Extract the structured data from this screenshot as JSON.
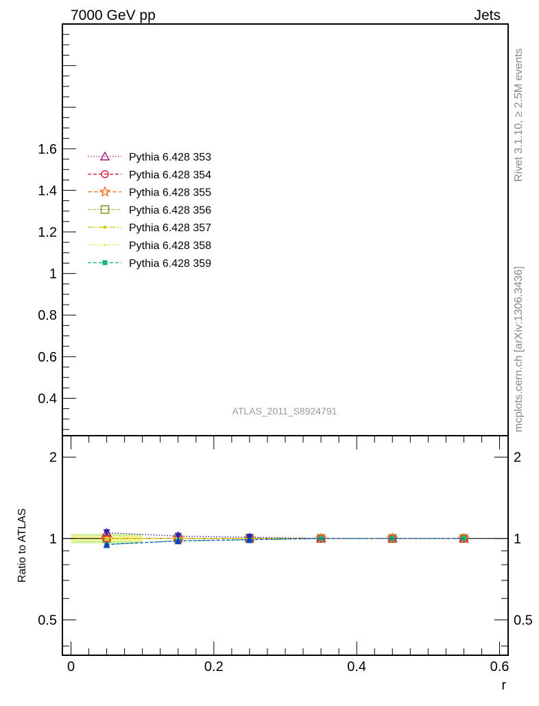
{
  "header": {
    "left": "7000 GeV pp",
    "right": "Jets"
  },
  "side_texts": {
    "top": "Rivet 3.1.10, ≥ 2.5M events",
    "bottom": "mcplots.cern.ch [arXiv:1306.3436]"
  },
  "watermark": "ATLAS_2011_S8924791",
  "colors": {
    "s353": "#b0107a",
    "s354": "#e0102a",
    "s355": "#f07020",
    "s356": "#7a8a10",
    "s357": "#d8c800",
    "s358": "#c8e820",
    "s359": "#10b878",
    "band_inner": "#f7f796",
    "band_outer": "#d0f0a0",
    "blue_up": "#3020b0",
    "blue_down": "#1040c0"
  },
  "chart_data": {
    "type": "line",
    "title": "",
    "xlabel": "r",
    "ylabel_ratio": "Ratio to ATLAS",
    "xlim": [
      -0.012,
      0.612
    ],
    "main_ylim": [
      0.22,
      2.2
    ],
    "ratio_ylim": [
      0.37,
      2.4
    ],
    "x_ticks": [
      "0",
      "0.2",
      "0.4",
      "0.6"
    ],
    "main_y_ticks": [
      "0.4",
      "0.6",
      "0.8",
      "1",
      "1.2",
      "1.4",
      "1.6"
    ],
    "ratio_y_ticks": [
      "0.5",
      "1",
      "2"
    ],
    "x": [
      0.05,
      0.15,
      0.25,
      0.35,
      0.45,
      0.55
    ],
    "ratio_band_inner": 0.02,
    "ratio_band_outer": 0.04,
    "series": [
      {
        "name": "Pythia 6.428 353",
        "key": "s353",
        "marker": "triangle-open",
        "dash": "1.5,2.5",
        "ratio": [
          1.05,
          1.02,
          1.01,
          1.0,
          1.0,
          1.0
        ]
      },
      {
        "name": "Pythia 6.428 354",
        "key": "s354",
        "marker": "circle-open",
        "dash": "5,3",
        "ratio": [
          1.0,
          1.0,
          1.0,
          1.0,
          1.0,
          1.0
        ]
      },
      {
        "name": "Pythia 6.428 355",
        "key": "s355",
        "marker": "star-open",
        "dash": "6,3",
        "ratio": [
          1.0,
          1.0,
          1.0,
          1.0,
          1.0,
          1.0
        ]
      },
      {
        "name": "Pythia 6.428 356",
        "key": "s356",
        "marker": "square-open",
        "dash": "1.5,2",
        "ratio": [
          1.0,
          1.0,
          1.0,
          1.0,
          1.0,
          1.0
        ]
      },
      {
        "name": "Pythia 6.428 357",
        "key": "s357",
        "marker": "dot",
        "dash": "8,3,2,3",
        "ratio": [
          1.0,
          1.0,
          1.0,
          1.0,
          1.0,
          1.0
        ]
      },
      {
        "name": "Pythia 6.428 358",
        "key": "s358",
        "marker": "dot-small",
        "dash": "1.5,2",
        "ratio": [
          1.0,
          1.0,
          1.0,
          1.0,
          1.0,
          1.0
        ]
      },
      {
        "name": "Pythia 6.428 359",
        "key": "s359",
        "marker": "square-filled",
        "dash": "5,3",
        "ratio": [
          0.95,
          0.98,
          0.99,
          1.0,
          1.0,
          1.0
        ]
      }
    ]
  }
}
